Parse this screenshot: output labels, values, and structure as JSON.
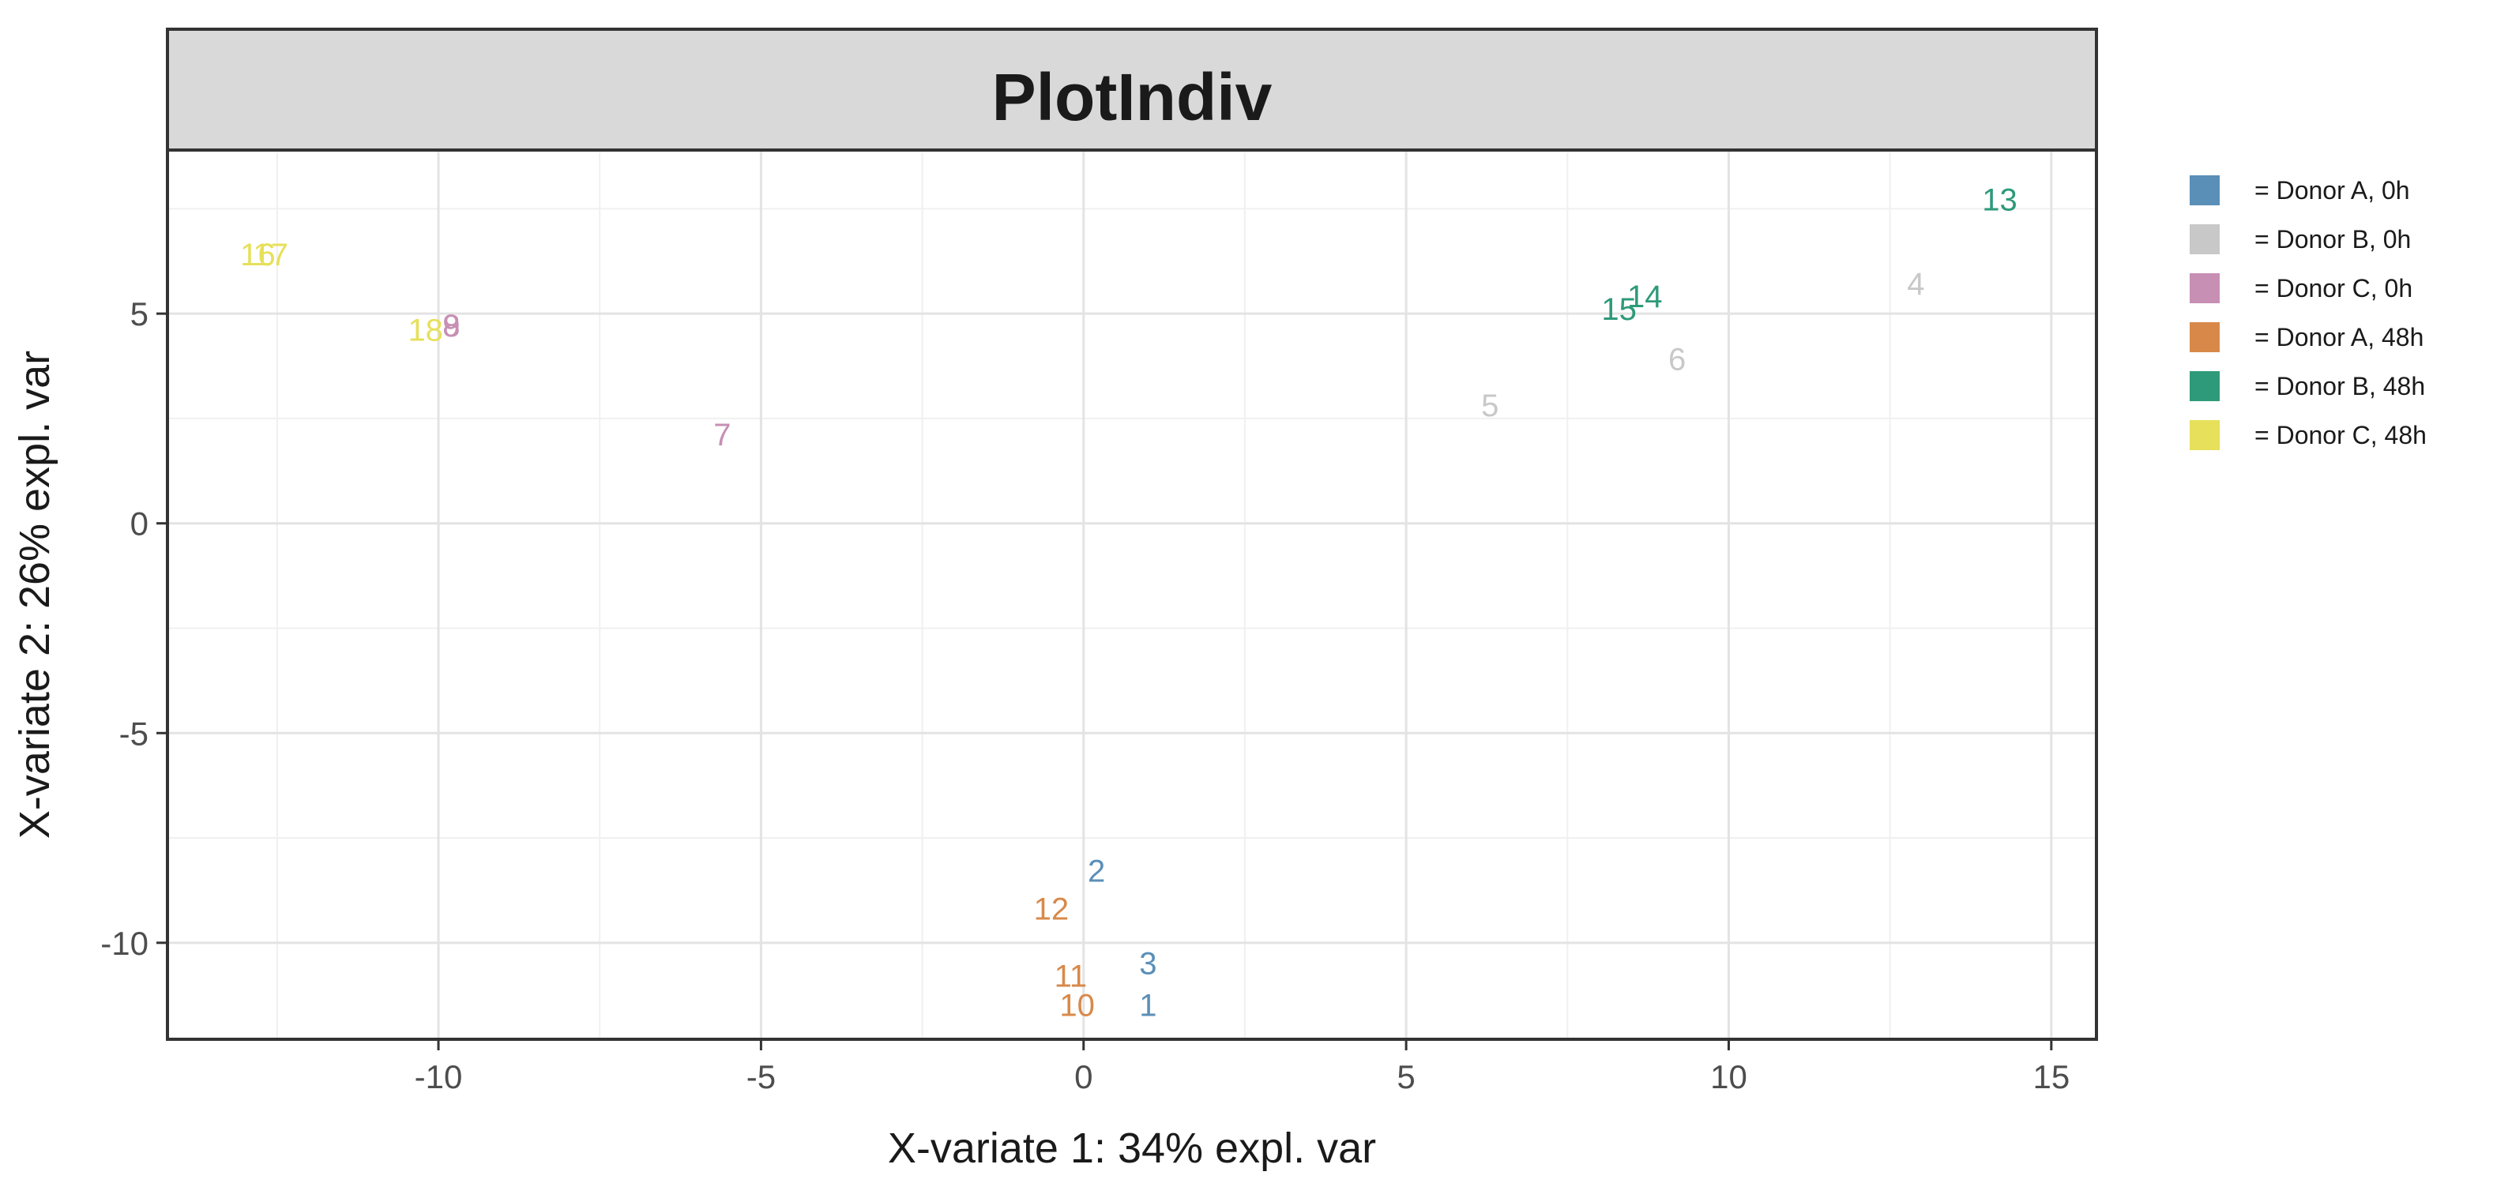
{
  "chart_data": {
    "type": "scatter",
    "title": "PlotIndiv",
    "xlabel": "X-variate 1: 34% expl. var",
    "ylabel": "X-variate 2: 26% expl. var",
    "xlim": [
      -14.2,
      15.7
    ],
    "ylim": [
      -12.3,
      8.9
    ],
    "xticks": [
      -10,
      -5,
      0,
      5,
      10,
      15
    ],
    "xtick_labels": [
      "-10",
      "-5",
      "0",
      "5",
      "10",
      "15"
    ],
    "yticks": [
      -10,
      -5,
      0,
      5
    ],
    "ytick_labels": [
      "-10",
      "-5",
      "0",
      "5"
    ],
    "grid": true,
    "legend_position": "right",
    "series": [
      {
        "name": "= Donor A, 0h",
        "color": "#5a8fb8",
        "points": [
          {
            "label": "1",
            "x": 1.0,
            "y": -11.5
          },
          {
            "label": "2",
            "x": 0.2,
            "y": -8.3
          },
          {
            "label": "3",
            "x": 1.0,
            "y": -10.5
          }
        ]
      },
      {
        "name": "= Donor B, 0h",
        "color": "#c8c8c8",
        "points": [
          {
            "label": "4",
            "x": 12.9,
            "y": 5.7
          },
          {
            "label": "5",
            "x": 6.3,
            "y": 2.8
          },
          {
            "label": "6",
            "x": 9.2,
            "y": 3.9
          }
        ]
      },
      {
        "name": "= Donor C, 0h",
        "color": "#c78fb4",
        "points": [
          {
            "label": "7",
            "x": -5.6,
            "y": 2.1
          },
          {
            "label": "8",
            "x": -9.8,
            "y": 4.7
          },
          {
            "label": "9",
            "x": -9.8,
            "y": 4.7
          }
        ]
      },
      {
        "name": "= Donor A, 48h",
        "color": "#d8894a",
        "points": [
          {
            "label": "10",
            "x": -0.1,
            "y": -11.5
          },
          {
            "label": "11",
            "x": -0.2,
            "y": -10.8
          },
          {
            "label": "12",
            "x": -0.5,
            "y": -9.2
          }
        ]
      },
      {
        "name": "= Donor B, 48h",
        "color": "#2e9a7a",
        "points": [
          {
            "label": "13",
            "x": 14.2,
            "y": 7.7
          },
          {
            "label": "14",
            "x": 8.7,
            "y": 5.4
          },
          {
            "label": "15",
            "x": 8.3,
            "y": 5.1
          }
        ]
      },
      {
        "name": "= Donor C, 48h",
        "color": "#e6e05a",
        "points": [
          {
            "label": "16",
            "x": -12.8,
            "y": 6.4
          },
          {
            "label": "17",
            "x": -12.6,
            "y": 6.4
          },
          {
            "label": "18",
            "x": -10.2,
            "y": 4.6
          }
        ]
      }
    ]
  }
}
